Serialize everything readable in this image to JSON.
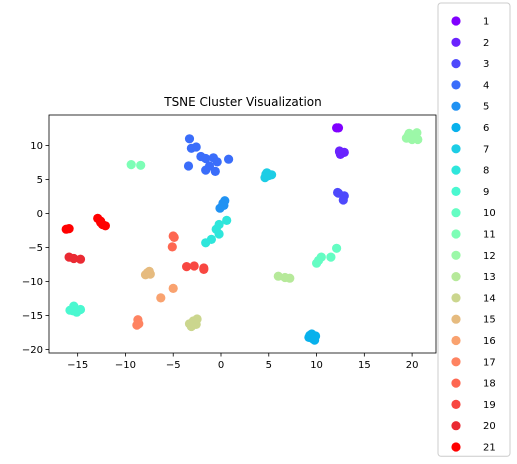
{
  "chart_data": {
    "type": "scatter",
    "title": "TSNE Cluster Visualization",
    "xlabel": "",
    "ylabel": "",
    "xlim": [
      -18,
      22.5
    ],
    "ylim": [
      -20.5,
      14.5
    ],
    "xticks": [
      -15,
      -10,
      -5,
      0,
      5,
      10,
      15,
      20
    ],
    "yticks": [
      10,
      5,
      0,
      -5,
      -10,
      -15,
      -20
    ],
    "grid": false,
    "legend_placement": "right",
    "series": [
      {
        "name": "1",
        "color": "#8000ff",
        "points": [
          [
            12.1,
            12.6
          ],
          [
            12.3,
            12.6
          ]
        ]
      },
      {
        "name": "2",
        "color": "#6a23fe",
        "points": [
          [
            12.4,
            9.1
          ],
          [
            12.9,
            9.0
          ],
          [
            12.5,
            8.7
          ],
          [
            12.4,
            9.2
          ]
        ]
      },
      {
        "name": "3",
        "color": "#4e49fc",
        "points": [
          [
            12.2,
            3.1
          ],
          [
            12.9,
            2.6
          ],
          [
            12.8,
            2.0
          ],
          [
            12.3,
            3.0
          ]
        ]
      },
      {
        "name": "4",
        "color": "#3a6dfa",
        "points": [
          [
            -3.3,
            11.0
          ],
          [
            -3.1,
            9.6
          ],
          [
            -2.6,
            9.8
          ],
          [
            -2.1,
            8.4
          ],
          [
            -1.6,
            8.1
          ],
          [
            -0.8,
            8.2
          ],
          [
            -0.4,
            7.6
          ],
          [
            -1.2,
            7.0
          ],
          [
            -1.6,
            6.4
          ],
          [
            -0.6,
            6.2
          ],
          [
            -3.4,
            7.0
          ],
          [
            0.8,
            8.0
          ]
        ]
      },
      {
        "name": "5",
        "color": "#2092f3",
        "points": [
          [
            -0.1,
            0.8
          ],
          [
            0.3,
            1.2
          ],
          [
            0.4,
            1.9
          ],
          [
            0.2,
            1.5
          ]
        ]
      },
      {
        "name": "6",
        "color": "#08b1ec",
        "points": [
          [
            9.2,
            -18.2
          ],
          [
            9.5,
            -17.7
          ],
          [
            9.9,
            -18.0
          ],
          [
            9.6,
            -18.4
          ],
          [
            9.3,
            -17.9
          ],
          [
            9.8,
            -18.6
          ]
        ]
      },
      {
        "name": "7",
        "color": "#1ccde5",
        "points": [
          [
            4.6,
            5.3
          ],
          [
            4.8,
            6.0
          ],
          [
            5.3,
            5.7
          ],
          [
            5.0,
            5.6
          ],
          [
            4.7,
            5.8
          ]
        ]
      },
      {
        "name": "8",
        "color": "#2ee6db",
        "points": [
          [
            -0.5,
            -2.3
          ],
          [
            -0.2,
            -3.0
          ],
          [
            0.6,
            -1.0
          ],
          [
            -1.0,
            -3.8
          ],
          [
            -1.6,
            -4.3
          ],
          [
            -0.2,
            -1.6
          ]
        ]
      },
      {
        "name": "9",
        "color": "#4af8d0",
        "points": [
          [
            -15.8,
            -14.2
          ],
          [
            -15.4,
            -13.6
          ],
          [
            -15.1,
            -14.5
          ],
          [
            -14.7,
            -14.1
          ],
          [
            -15.5,
            -14.3
          ]
        ]
      },
      {
        "name": "10",
        "color": "#64fdc3",
        "points": [
          [
            10.0,
            -7.3
          ],
          [
            10.5,
            -6.4
          ],
          [
            11.5,
            -6.4
          ],
          [
            12.1,
            -5.1
          ],
          [
            10.2,
            -6.9
          ]
        ]
      },
      {
        "name": "11",
        "color": "#7dfeb6",
        "points": [
          [
            -9.4,
            7.2
          ],
          [
            -8.4,
            7.1
          ]
        ]
      },
      {
        "name": "12",
        "color": "#9cf8a8",
        "points": [
          [
            19.4,
            11.1
          ],
          [
            19.7,
            11.8
          ],
          [
            20.0,
            10.9
          ],
          [
            20.3,
            11.3
          ],
          [
            19.6,
            11.5
          ],
          [
            20.5,
            11.9
          ],
          [
            20.6,
            10.9
          ],
          [
            20.1,
            11.2
          ]
        ]
      },
      {
        "name": "13",
        "color": "#b6e99a",
        "points": [
          [
            6.0,
            -9.2
          ],
          [
            6.7,
            -9.4
          ],
          [
            7.2,
            -9.5
          ]
        ]
      },
      {
        "name": "14",
        "color": "#cbd68e",
        "points": [
          [
            -3.3,
            -16.2
          ],
          [
            -2.9,
            -15.8
          ],
          [
            -2.6,
            -16.3
          ],
          [
            -3.1,
            -16.6
          ],
          [
            -2.5,
            -15.5
          ]
        ]
      },
      {
        "name": "15",
        "color": "#e6bb7f",
        "points": [
          [
            -7.9,
            -9.0
          ],
          [
            -7.5,
            -8.5
          ],
          [
            -7.4,
            -8.9
          ],
          [
            -7.7,
            -8.7
          ]
        ]
      },
      {
        "name": "16",
        "color": "#f9a26f",
        "points": [
          [
            -6.3,
            -12.4
          ],
          [
            -5.0,
            -11.0
          ]
        ]
      },
      {
        "name": "17",
        "color": "#fe8361",
        "points": [
          [
            -8.8,
            -16.4
          ],
          [
            -8.7,
            -15.6
          ],
          [
            -8.6,
            -16.2
          ]
        ]
      },
      {
        "name": "18",
        "color": "#fe6751",
        "points": [
          [
            -5.1,
            -4.9
          ],
          [
            -5.0,
            -3.3
          ],
          [
            -4.9,
            -3.5
          ]
        ]
      },
      {
        "name": "19",
        "color": "#f84741",
        "points": [
          [
            -3.6,
            -7.8
          ],
          [
            -2.8,
            -7.7
          ],
          [
            -1.8,
            -8.0
          ],
          [
            -1.8,
            -8.2
          ]
        ]
      },
      {
        "name": "20",
        "color": "#ea2a33",
        "points": [
          [
            -15.9,
            -6.4
          ],
          [
            -15.4,
            -6.6
          ],
          [
            -14.7,
            -6.7
          ]
        ]
      },
      {
        "name": "21",
        "color": "#ff0000",
        "points": [
          [
            -16.2,
            -2.3
          ],
          [
            -15.9,
            -2.2
          ],
          [
            -12.9,
            -0.7
          ],
          [
            -12.6,
            -1.3
          ],
          [
            -12.4,
            -1.6
          ],
          [
            -12.1,
            -1.8
          ],
          [
            -12.6,
            -1.1
          ]
        ]
      }
    ]
  }
}
